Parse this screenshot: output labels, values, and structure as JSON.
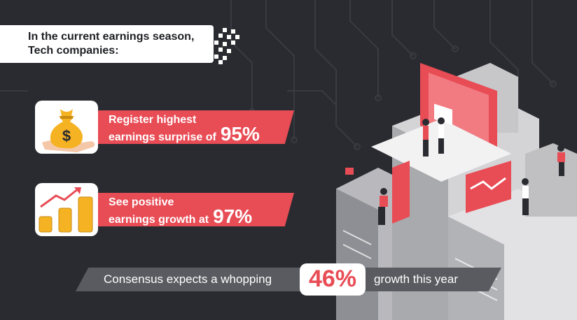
{
  "header": {
    "line1": "In the current earnings season,",
    "line2": "Tech companies:"
  },
  "cards": [
    {
      "icon": "money-bag-icon",
      "line1": "Register highest",
      "line2": "earnings surprise of",
      "value": "95%"
    },
    {
      "icon": "growth-coins-icon",
      "line1": "See positive",
      "line2": "earnings growth at",
      "value": "97%"
    }
  ],
  "footer": {
    "before": "Consensus expects a whopping",
    "value": "46%",
    "after": "growth this year"
  },
  "colors": {
    "background": "#2a2b30",
    "accent": "#e84c55",
    "card": "#ffffff",
    "bar": "#5a5b60"
  }
}
